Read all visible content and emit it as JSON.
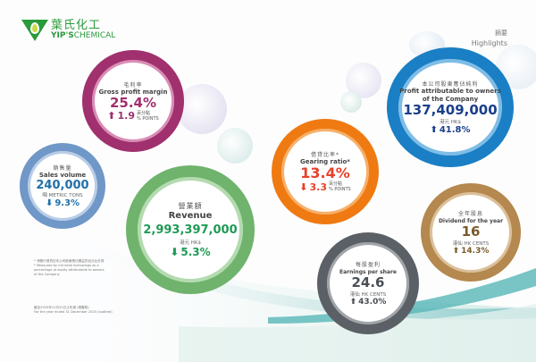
{
  "logo": {
    "cn": "葉氏化工",
    "en_bold": "YIP'S",
    "en": "CHEMICAL"
  },
  "header": {
    "cn": "摘要",
    "en": "Highlights"
  },
  "colors": {
    "gross": "#a0306e",
    "sales": "#6f97c7",
    "revenue": "#6fb36d",
    "gearing": "#ef7a12",
    "profit": "#1a7fc4",
    "dividend": "#b4884e",
    "eps": "#5b6066"
  },
  "metrics": {
    "gross": {
      "cn": "毛利率",
      "label": "Gross profit margin",
      "value": "25.4%",
      "direction": "up",
      "change": "1.9",
      "unit_cn": "百分點",
      "unit": "% POINTS"
    },
    "sales": {
      "cn": "銷售量",
      "label": "Sales volume",
      "value": "240,000",
      "unit": "噸 METRIC TONS",
      "direction": "down",
      "change": "9.3%"
    },
    "revenue": {
      "cn": "營業額",
      "label": "Revenue",
      "value": "2,993,397,000",
      "unit": "港元 HK$",
      "direction": "down",
      "change": "5.3%"
    },
    "gearing": {
      "cn": "借貸比率*",
      "label": "Gearing ratio*",
      "value": "13.4%",
      "direction": "down",
      "change": "3.3",
      "unit_cn": "百分點",
      "unit": "% POINTS"
    },
    "profit": {
      "cn": "本公司股東應佔純利",
      "label1": "Profit attributable to owners",
      "label2": "of the Company",
      "value": "137,409,000",
      "unit": "港元 HK$",
      "direction": "up",
      "change": "41.8%"
    },
    "dividend": {
      "cn": "全年股息",
      "label": "Dividend for the year",
      "value": "16",
      "unit": "港仙 HK CENTS",
      "direction": "up",
      "change": "14.3%"
    },
    "eps": {
      "cn": "每股盈利",
      "label": "Earnings per share",
      "value": "24.6",
      "unit": "港仙 HK CENTS",
      "direction": "up",
      "change": "43.0%"
    }
  },
  "footnote": {
    "cn": "* 淨銀行借貸佔本公司股東應佔權益的百分比計算",
    "en": "* Measured by net bank borrowings as a percentage of equity attributable to owners of the Company"
  },
  "period": {
    "cn": "截至2025年12月31日止年度 (經審核)",
    "en": "For the year ended 31 December 2025 (audited)"
  }
}
